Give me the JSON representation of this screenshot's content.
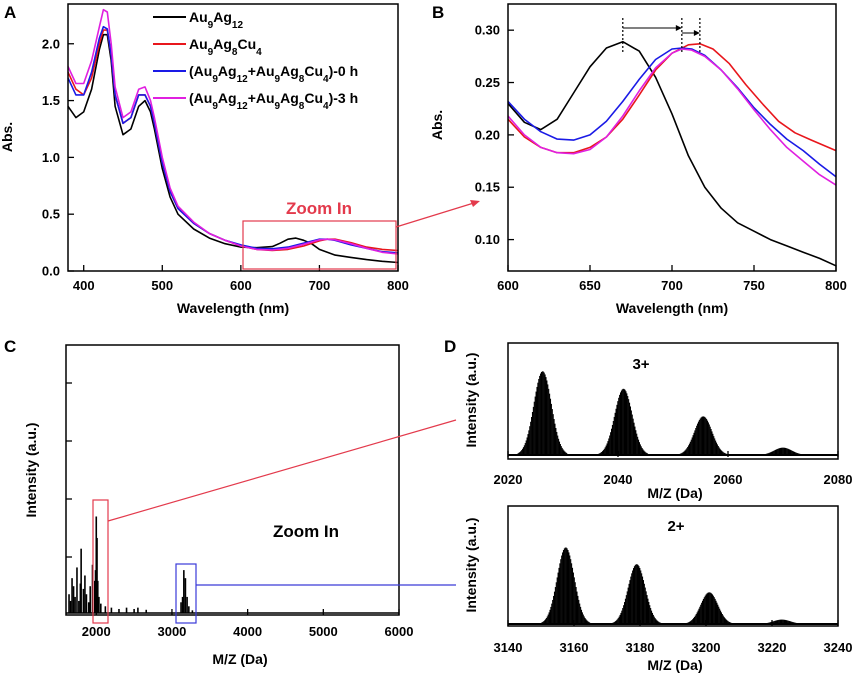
{
  "colors": {
    "black": "#000000",
    "red": "#e8161c",
    "blue": "#1a1ae6",
    "magenta": "#e020e0",
    "zoom_red": "#e33a4c",
    "zoom_blue": "#3a3ad8"
  },
  "panels": {
    "A": "A",
    "B": "B",
    "C": "C",
    "D": "D"
  },
  "annotations": {
    "zoom_in_a": "Zoom In",
    "zoom_in_c": "Zoom In",
    "charge_3": "3+",
    "charge_2": "2+"
  },
  "chart_data": [
    {
      "id": "A",
      "type": "line",
      "title": "",
      "xlabel": "Wavelength (nm)",
      "ylabel": "Abs.",
      "xlim": [
        380,
        800
      ],
      "ylim": [
        0,
        2.35
      ],
      "xticks": [
        400,
        500,
        600,
        700,
        800
      ],
      "yticks": [
        0.0,
        0.5,
        1.0,
        1.5,
        2.0
      ],
      "ytick_labels": [
        "0.0",
        "0.5",
        "1.0",
        "1.5",
        "2.0"
      ],
      "legend_position": "top-right",
      "series": [
        {
          "name": "Au9Ag12",
          "legend": [
            "Au",
            "9",
            "Ag",
            "12"
          ],
          "color": "black",
          "x": [
            380,
            390,
            400,
            410,
            420,
            425,
            430,
            435,
            440,
            450,
            460,
            470,
            478,
            485,
            490,
            500,
            510,
            520,
            540,
            560,
            580,
            600,
            620,
            640,
            650,
            660,
            670,
            680,
            690,
            700,
            720,
            740,
            760,
            780,
            800
          ],
          "y": [
            1.45,
            1.35,
            1.4,
            1.6,
            1.95,
            2.08,
            2.08,
            1.85,
            1.45,
            1.2,
            1.25,
            1.45,
            1.5,
            1.4,
            1.25,
            0.9,
            0.65,
            0.5,
            0.37,
            0.29,
            0.24,
            0.21,
            0.205,
            0.215,
            0.245,
            0.28,
            0.29,
            0.27,
            0.24,
            0.19,
            0.14,
            0.12,
            0.1,
            0.085,
            0.075
          ]
        },
        {
          "name": "Au9Ag8Cu4",
          "legend": [
            "Au",
            "9",
            "Ag",
            "8",
            "Cu",
            "4"
          ],
          "color": "red",
          "x": [
            380,
            390,
            400,
            410,
            420,
            425,
            430,
            435,
            440,
            450,
            460,
            470,
            478,
            485,
            490,
            500,
            510,
            520,
            540,
            560,
            580,
            600,
            620,
            640,
            660,
            680,
            700,
            710,
            720,
            740,
            760,
            780,
            800
          ],
          "y": [
            1.75,
            1.6,
            1.55,
            1.7,
            2.0,
            2.12,
            2.12,
            1.9,
            1.55,
            1.3,
            1.35,
            1.55,
            1.55,
            1.45,
            1.3,
            0.95,
            0.7,
            0.55,
            0.42,
            0.33,
            0.27,
            0.22,
            0.19,
            0.18,
            0.19,
            0.22,
            0.265,
            0.28,
            0.28,
            0.25,
            0.21,
            0.19,
            0.18
          ]
        },
        {
          "name": "(Au9Ag12+Au9Ag8Cu4)-0 h",
          "legend": [
            "(Au",
            "9",
            "Ag",
            "12",
            "+Au",
            "9",
            "Ag",
            "8",
            "Cu",
            "4",
            ")-0 h"
          ],
          "color": "blue",
          "x": [
            380,
            390,
            400,
            410,
            420,
            425,
            430,
            435,
            440,
            450,
            460,
            470,
            478,
            485,
            490,
            500,
            510,
            520,
            540,
            560,
            580,
            600,
            620,
            640,
            660,
            680,
            700,
            710,
            720,
            740,
            760,
            780,
            800
          ],
          "y": [
            1.7,
            1.55,
            1.55,
            1.75,
            2.05,
            2.15,
            2.13,
            1.9,
            1.55,
            1.3,
            1.35,
            1.55,
            1.55,
            1.45,
            1.3,
            0.95,
            0.7,
            0.55,
            0.42,
            0.33,
            0.27,
            0.23,
            0.2,
            0.195,
            0.21,
            0.245,
            0.28,
            0.28,
            0.27,
            0.23,
            0.2,
            0.17,
            0.16
          ]
        },
        {
          "name": "(Au9Ag12+Au9Ag8Cu4)-3 h",
          "legend": [
            "(Au",
            "9",
            "Ag",
            "12",
            "+Au",
            "9",
            "Ag",
            "8",
            "Cu",
            "4",
            ")-3 h"
          ],
          "color": "magenta",
          "x": [
            380,
            390,
            400,
            410,
            420,
            425,
            430,
            435,
            440,
            450,
            460,
            470,
            478,
            485,
            490,
            500,
            510,
            520,
            540,
            560,
            580,
            600,
            620,
            640,
            660,
            680,
            700,
            710,
            720,
            740,
            760,
            780,
            800
          ],
          "y": [
            1.8,
            1.65,
            1.65,
            1.85,
            2.15,
            2.3,
            2.28,
            2.0,
            1.62,
            1.35,
            1.4,
            1.6,
            1.62,
            1.5,
            1.35,
            1.0,
            0.73,
            0.57,
            0.43,
            0.33,
            0.27,
            0.22,
            0.19,
            0.185,
            0.2,
            0.235,
            0.275,
            0.28,
            0.275,
            0.24,
            0.2,
            0.165,
            0.15
          ]
        }
      ]
    },
    {
      "id": "B",
      "type": "line",
      "title": "",
      "xlabel": "Wavelength (nm)",
      "ylabel": "Abs.",
      "xlim": [
        600,
        800
      ],
      "ylim": [
        0.07,
        0.325
      ],
      "xticks": [
        600,
        650,
        700,
        750,
        800
      ],
      "yticks": [
        0.1,
        0.15,
        0.2,
        0.25,
        0.3
      ],
      "ytick_labels": [
        "0.10",
        "0.15",
        "0.20",
        "0.25",
        "0.30"
      ],
      "peak_markers_nm": [
        670,
        706,
        717
      ],
      "series": [
        {
          "name": "Au9Ag12",
          "color": "black",
          "x": [
            600,
            610,
            620,
            630,
            640,
            650,
            660,
            670,
            680,
            690,
            700,
            710,
            720,
            730,
            740,
            750,
            760,
            770,
            780,
            790,
            800
          ],
          "y": [
            0.23,
            0.212,
            0.205,
            0.215,
            0.24,
            0.265,
            0.283,
            0.289,
            0.28,
            0.255,
            0.22,
            0.18,
            0.15,
            0.13,
            0.116,
            0.108,
            0.1,
            0.094,
            0.088,
            0.082,
            0.075
          ]
        },
        {
          "name": "Au9Ag8Cu4",
          "color": "red",
          "x": [
            600,
            610,
            620,
            630,
            640,
            650,
            660,
            670,
            680,
            690,
            700,
            710,
            717,
            725,
            735,
            745,
            755,
            765,
            775,
            785,
            800
          ],
          "y": [
            0.215,
            0.198,
            0.188,
            0.183,
            0.183,
            0.188,
            0.198,
            0.215,
            0.238,
            0.262,
            0.278,
            0.286,
            0.287,
            0.282,
            0.268,
            0.248,
            0.23,
            0.213,
            0.202,
            0.195,
            0.185
          ]
        },
        {
          "name": "(Au9Ag12+Au9Ag8Cu4)-0 h",
          "color": "blue",
          "x": [
            600,
            610,
            620,
            630,
            640,
            650,
            660,
            670,
            680,
            690,
            700,
            706,
            712,
            720,
            730,
            740,
            750,
            760,
            770,
            780,
            790,
            800
          ],
          "y": [
            0.232,
            0.215,
            0.203,
            0.196,
            0.195,
            0.2,
            0.213,
            0.232,
            0.253,
            0.272,
            0.282,
            0.283,
            0.282,
            0.276,
            0.262,
            0.245,
            0.226,
            0.21,
            0.196,
            0.185,
            0.172,
            0.16
          ]
        },
        {
          "name": "(Au9Ag12+Au9Ag8Cu4)-3 h",
          "color": "magenta",
          "x": [
            600,
            610,
            620,
            630,
            640,
            650,
            660,
            670,
            680,
            690,
            700,
            706,
            712,
            720,
            730,
            740,
            750,
            760,
            770,
            780,
            790,
            800
          ],
          "y": [
            0.218,
            0.2,
            0.188,
            0.183,
            0.182,
            0.186,
            0.198,
            0.218,
            0.242,
            0.264,
            0.278,
            0.282,
            0.281,
            0.275,
            0.262,
            0.244,
            0.224,
            0.205,
            0.188,
            0.175,
            0.162,
            0.152
          ]
        }
      ]
    },
    {
      "id": "C",
      "type": "bar",
      "title": "",
      "xlabel": "M/Z (Da)",
      "ylabel": "Intensity (a.u.)",
      "xlim": [
        1600,
        6000
      ],
      "ylim": [
        0,
        1
      ],
      "xticks": [
        2000,
        3000,
        4000,
        5000,
        6000
      ],
      "peaks": {
        "x": [
          1640,
          1660,
          1680,
          1700,
          1720,
          1745,
          1770,
          1790,
          1800,
          1830,
          1850,
          1870,
          1900,
          1920,
          1950,
          1980,
          1990,
          2000,
          2010,
          2020,
          2035,
          2060,
          2120,
          2200,
          2300,
          2400,
          2500,
          2550,
          2660,
          3120,
          3140,
          3157,
          3178,
          3200,
          3223,
          3270
        ],
        "y": [
          0.07,
          0.045,
          0.13,
          0.1,
          0.06,
          0.17,
          0.045,
          0.11,
          0.24,
          0.09,
          0.14,
          0.07,
          0.04,
          0.1,
          0.18,
          0.12,
          0.16,
          0.36,
          0.28,
          0.12,
          0.06,
          0.035,
          0.025,
          0.02,
          0.015,
          0.02,
          0.015,
          0.02,
          0.012,
          0.04,
          0.06,
          0.16,
          0.13,
          0.06,
          0.025,
          0.01
        ]
      }
    },
    {
      "id": "D-top",
      "type": "bar",
      "title": "3+",
      "xlabel": "M/Z (Da)",
      "ylabel": "Intensity (a.u.)",
      "xlim": [
        2020,
        2080
      ],
      "xticks": [
        2020,
        2040,
        2060,
        2080
      ],
      "envelope": {
        "centers": [
          2026.3,
          2041.0,
          2055.5,
          2070.0
        ],
        "heights": [
          0.91,
          0.72,
          0.42,
          0.08
        ],
        "width": 1.6
      }
    },
    {
      "id": "D-bottom",
      "type": "bar",
      "title": "2+",
      "xlabel": "M/Z (Da)",
      "ylabel": "Intensity (a.u.)",
      "xlim": [
        3140,
        3240
      ],
      "xticks": [
        3140,
        3160,
        3180,
        3200,
        3220,
        3240
      ],
      "envelope": {
        "centers": [
          3157.5,
          3179.0,
          3201.0,
          3223.0
        ],
        "heights": [
          0.87,
          0.68,
          0.36,
          0.05
        ],
        "width": 2.6
      }
    }
  ]
}
